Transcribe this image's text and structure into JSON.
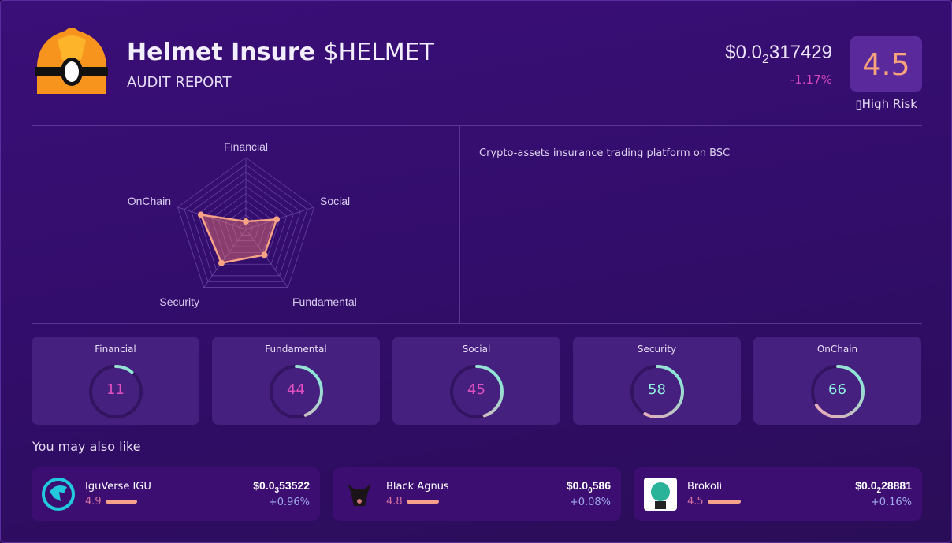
{
  "header": {
    "name": "Helmet Insure",
    "symbol": "$HELMET",
    "subtitle": "AUDIT REPORT",
    "price_prefix": "$0.0",
    "price_zeros": "2",
    "price_digits": "317429",
    "change": "-1.17%",
    "score": "4.5",
    "risk_label": "High Risk"
  },
  "description": "Crypto-assets insurance trading platform on BSC",
  "colors": {
    "accent": "#f8a37c",
    "negative": "#d048b8",
    "positive": "#9fa8e8",
    "gauge_start": "#f4a3b5",
    "gauge_end": "#7ef0dc"
  },
  "chart_data": {
    "type": "radar",
    "axes": [
      "Financial",
      "Social",
      "Fundamental",
      "Security",
      "OnChain"
    ],
    "values": [
      11,
      45,
      44,
      58,
      66
    ],
    "range": [
      0,
      100
    ]
  },
  "scores": [
    {
      "label": "Financial",
      "value": 11
    },
    {
      "label": "Fundamental",
      "value": 44
    },
    {
      "label": "Social",
      "value": 45
    },
    {
      "label": "Security",
      "value": 58
    },
    {
      "label": "OnChain",
      "value": 66
    }
  ],
  "also_like": {
    "title": "You may also like",
    "items": [
      {
        "name": "IguVerse IGU",
        "rating": "4.9",
        "rating_value": 4.9,
        "price_prefix": "$0.0",
        "price_zeros": "3",
        "price_digits": "53522",
        "change": "+0.96%",
        "icon": "iguverse-logo"
      },
      {
        "name": "Black Agnus",
        "rating": "4.8",
        "rating_value": 4.8,
        "price_prefix": "$0.0",
        "price_zeros": "0",
        "price_digits": "586",
        "change": "+0.08%",
        "icon": "black-agnus-logo"
      },
      {
        "name": "Brokoli",
        "rating": "4.5",
        "rating_value": 4.5,
        "price_prefix": "$0.0",
        "price_zeros": "2",
        "price_digits": "28881",
        "change": "+0.16%",
        "icon": "brokoli-logo"
      }
    ]
  }
}
